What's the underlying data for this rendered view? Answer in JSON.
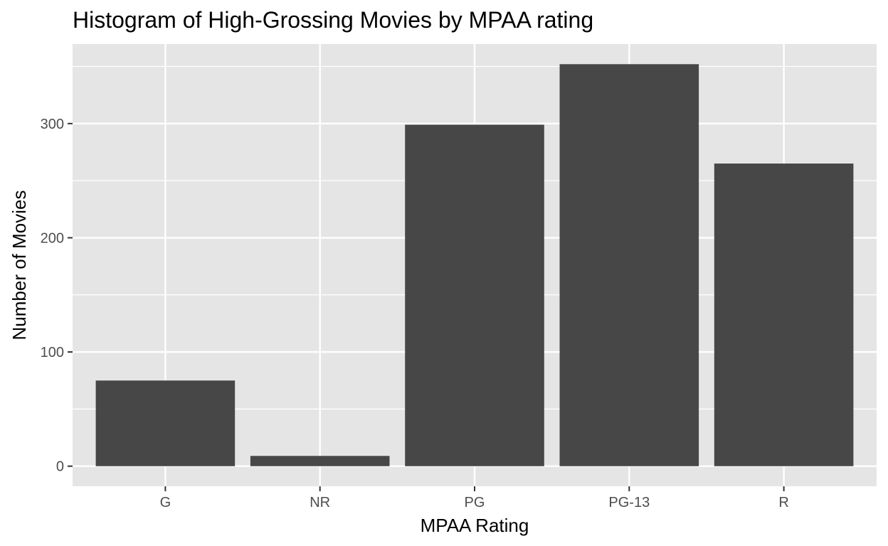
{
  "chart_data": {
    "type": "bar",
    "title": "Histogram of High-Grossing Movies by MPAA rating",
    "xlabel": "MPAA Rating",
    "ylabel": "Number of Movies",
    "categories": [
      "G",
      "NR",
      "PG",
      "PG-13",
      "R"
    ],
    "values": [
      75,
      9,
      299,
      352,
      265
    ],
    "yticks": [
      0,
      100,
      200,
      300
    ],
    "ylim": [
      -17.6,
      369.6
    ],
    "grid": true,
    "bar_color": "#474747",
    "panel_color": "#e5e5e5",
    "grid_color": "#ffffff"
  }
}
